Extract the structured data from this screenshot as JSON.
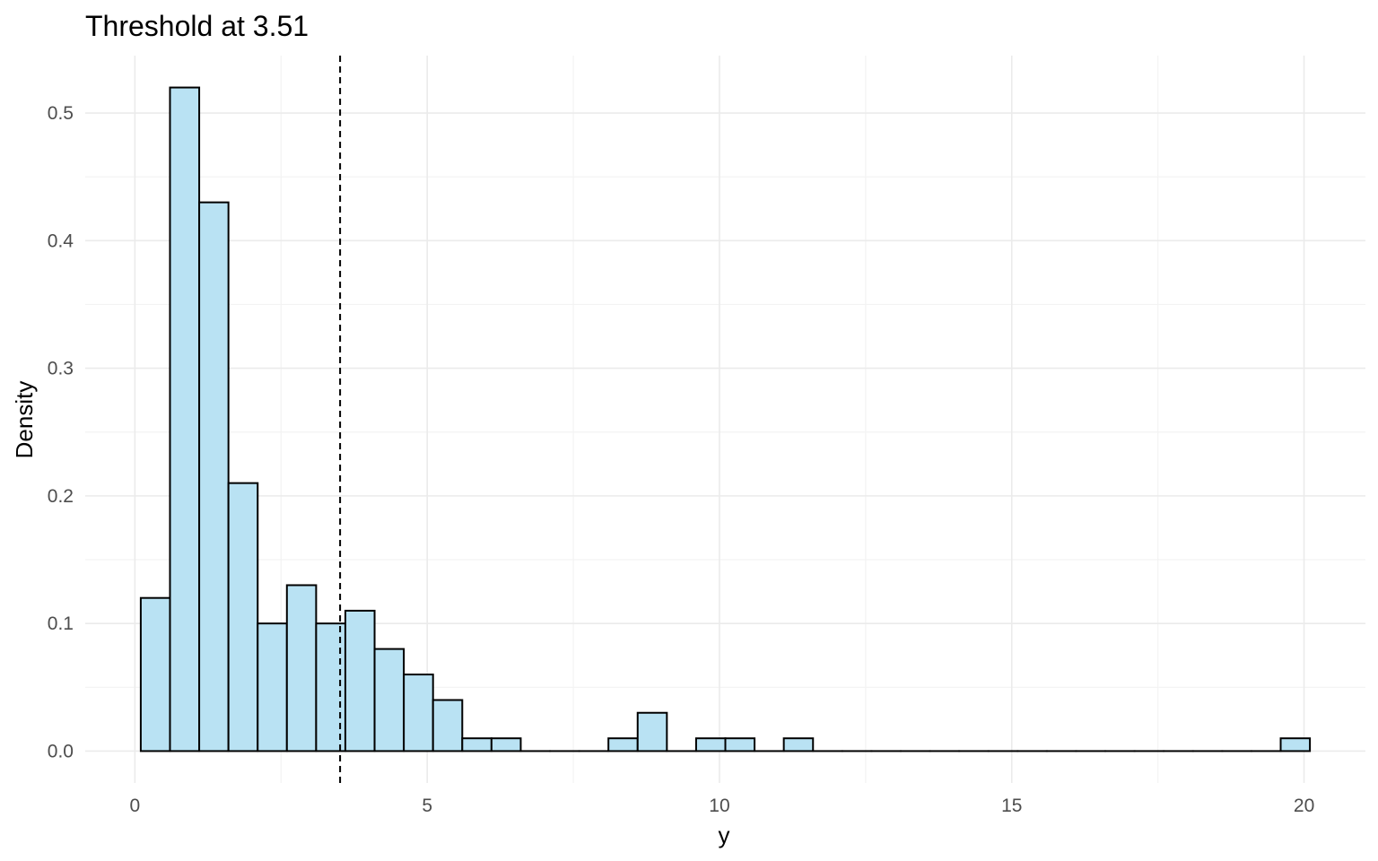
{
  "chart_data": {
    "type": "bar",
    "subtype": "histogram",
    "title": "Threshold at 3.51",
    "xlabel": "y",
    "ylabel": "Density",
    "xlim": [
      -0.85,
      21.05
    ],
    "ylim": [
      -0.025,
      0.545
    ],
    "x_ticks": [
      0,
      5,
      10,
      15,
      20
    ],
    "x_tick_labels": [
      "0",
      "5",
      "10",
      "15",
      "20"
    ],
    "y_ticks": [
      0.0,
      0.1,
      0.2,
      0.3,
      0.4,
      0.5
    ],
    "y_tick_labels": [
      "0.0",
      "0.1",
      "0.2",
      "0.3",
      "0.4",
      "0.5"
    ],
    "grid": true,
    "bin_width": 0.5,
    "bins": [
      {
        "x0": 0.1,
        "x1": 0.6,
        "density": 0.12
      },
      {
        "x0": 0.6,
        "x1": 1.1,
        "density": 0.52
      },
      {
        "x0": 1.1,
        "x1": 1.6,
        "density": 0.43
      },
      {
        "x0": 1.6,
        "x1": 2.1,
        "density": 0.21
      },
      {
        "x0": 2.1,
        "x1": 2.6,
        "density": 0.1
      },
      {
        "x0": 2.6,
        "x1": 3.1,
        "density": 0.13
      },
      {
        "x0": 3.1,
        "x1": 3.6,
        "density": 0.1
      },
      {
        "x0": 3.6,
        "x1": 4.1,
        "density": 0.11
      },
      {
        "x0": 4.1,
        "x1": 4.6,
        "density": 0.08
      },
      {
        "x0": 4.6,
        "x1": 5.1,
        "density": 0.06
      },
      {
        "x0": 5.1,
        "x1": 5.6,
        "density": 0.04
      },
      {
        "x0": 5.6,
        "x1": 6.1,
        "density": 0.01
      },
      {
        "x0": 6.1,
        "x1": 6.6,
        "density": 0.01
      },
      {
        "x0": 6.6,
        "x1": 7.1,
        "density": 0.0
      },
      {
        "x0": 7.1,
        "x1": 7.6,
        "density": 0.0
      },
      {
        "x0": 7.6,
        "x1": 8.1,
        "density": 0.0
      },
      {
        "x0": 8.1,
        "x1": 8.6,
        "density": 0.01
      },
      {
        "x0": 8.6,
        "x1": 9.1,
        "density": 0.03
      },
      {
        "x0": 9.1,
        "x1": 9.6,
        "density": 0.0
      },
      {
        "x0": 9.6,
        "x1": 10.1,
        "density": 0.01
      },
      {
        "x0": 10.1,
        "x1": 10.6,
        "density": 0.01
      },
      {
        "x0": 10.6,
        "x1": 11.1,
        "density": 0.0
      },
      {
        "x0": 11.1,
        "x1": 11.6,
        "density": 0.01
      },
      {
        "x0": 11.6,
        "x1": 12.1,
        "density": 0.0
      },
      {
        "x0": 12.1,
        "x1": 12.6,
        "density": 0.0
      },
      {
        "x0": 12.6,
        "x1": 13.1,
        "density": 0.0
      },
      {
        "x0": 13.1,
        "x1": 13.6,
        "density": 0.0
      },
      {
        "x0": 13.6,
        "x1": 14.1,
        "density": 0.0
      },
      {
        "x0": 14.1,
        "x1": 14.6,
        "density": 0.0
      },
      {
        "x0": 14.6,
        "x1": 15.1,
        "density": 0.0
      },
      {
        "x0": 15.1,
        "x1": 15.6,
        "density": 0.0
      },
      {
        "x0": 15.6,
        "x1": 16.1,
        "density": 0.0
      },
      {
        "x0": 16.1,
        "x1": 16.6,
        "density": 0.0
      },
      {
        "x0": 16.6,
        "x1": 17.1,
        "density": 0.0
      },
      {
        "x0": 17.1,
        "x1": 17.6,
        "density": 0.0
      },
      {
        "x0": 17.6,
        "x1": 18.1,
        "density": 0.0
      },
      {
        "x0": 18.1,
        "x1": 18.6,
        "density": 0.0
      },
      {
        "x0": 18.6,
        "x1": 19.1,
        "density": 0.0
      },
      {
        "x0": 19.1,
        "x1": 19.6,
        "density": 0.0
      },
      {
        "x0": 19.6,
        "x1": 20.1,
        "density": 0.01
      }
    ],
    "threshold": 3.51,
    "threshold_line_style": "dashed",
    "colors": {
      "bar_fill": "#b9e2f3",
      "bar_stroke": "#000000",
      "grid_major": "#ebebeb",
      "grid_minor": "#f3f3f3",
      "threshold_line": "#000000"
    }
  }
}
